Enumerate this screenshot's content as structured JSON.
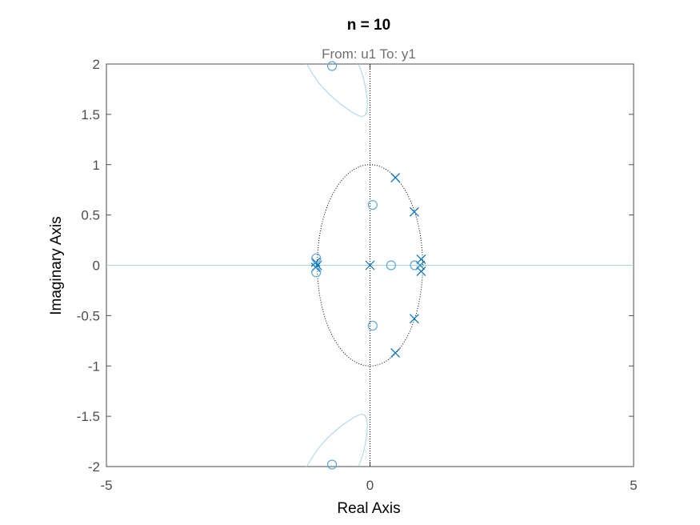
{
  "figure": {
    "title": "n = 10",
    "subtitle": "From: u1  To: y1"
  },
  "chart_data": {
    "type": "scatter",
    "subtype": "root-locus / pole-zero map",
    "title": "n = 10",
    "subtitle": "From: u1  To: y1",
    "xlabel": "Real Axis",
    "ylabel": "Imaginary Axis",
    "xlim": [
      -5,
      5
    ],
    "ylim": [
      -2,
      2
    ],
    "xticks": [
      -5,
      0,
      5
    ],
    "yticks": [
      -2,
      -1.5,
      -1,
      -0.5,
      0,
      0.5,
      1,
      1.5,
      2
    ],
    "xtick_labels": [
      "-5",
      "0",
      "5"
    ],
    "ytick_labels": [
      "-2",
      "-1.5",
      "-1",
      "-0.5",
      "0",
      "0.5",
      "1",
      "1.5",
      "2"
    ],
    "grid": false,
    "unit_circle": true,
    "colors": {
      "poles": "#0072bd",
      "zeros": "#5aa8d8",
      "locus": "#a9d2ec",
      "axes": "#4d4d4d",
      "guide": "#000000"
    },
    "series": [
      {
        "marker": "x",
        "points": [
          {
            "x": 0.0,
            "y": 0.0
          },
          {
            "x": 0.48,
            "y": 0.87
          },
          {
            "x": 0.48,
            "y": -0.87
          },
          {
            "x": 0.84,
            "y": 0.53
          },
          {
            "x": 0.84,
            "y": -0.53
          },
          {
            "x": 0.95,
            "y": 0.0
          },
          {
            "x": 0.97,
            "y": 0.06
          },
          {
            "x": 0.97,
            "y": -0.06
          },
          {
            "x": -1.03,
            "y": 0.03
          },
          {
            "x": -1.03,
            "y": -0.02
          },
          {
            "x": -1.0,
            "y": 0.0
          }
        ]
      },
      {
        "marker": "o",
        "points": [
          {
            "x": -0.72,
            "y": 1.98
          },
          {
            "x": -0.72,
            "y": -1.98
          },
          {
            "x": 0.05,
            "y": 0.6
          },
          {
            "x": 0.05,
            "y": -0.6
          },
          {
            "x": 0.4,
            "y": 0.0
          },
          {
            "x": 0.85,
            "y": 0.0
          },
          {
            "x": -1.02,
            "y": 0.07
          },
          {
            "x": -1.02,
            "y": -0.07
          }
        ]
      }
    ],
    "locus_branches": [
      {
        "points": [
          [
            -1.2,
            2.0
          ],
          [
            -0.95,
            1.8
          ],
          [
            -0.55,
            1.6
          ],
          [
            -0.15,
            1.48
          ],
          [
            -0.05,
            1.6
          ],
          [
            -0.12,
            1.85
          ],
          [
            -0.22,
            2.0
          ]
        ]
      },
      {
        "points": [
          [
            -1.2,
            -2.0
          ],
          [
            -0.95,
            -1.8
          ],
          [
            -0.55,
            -1.6
          ],
          [
            -0.15,
            -1.48
          ],
          [
            -0.05,
            -1.6
          ],
          [
            -0.12,
            -1.85
          ],
          [
            -0.22,
            -2.0
          ]
        ]
      },
      {
        "points": [
          [
            -5,
            0
          ],
          [
            5,
            0
          ]
        ]
      }
    ]
  }
}
